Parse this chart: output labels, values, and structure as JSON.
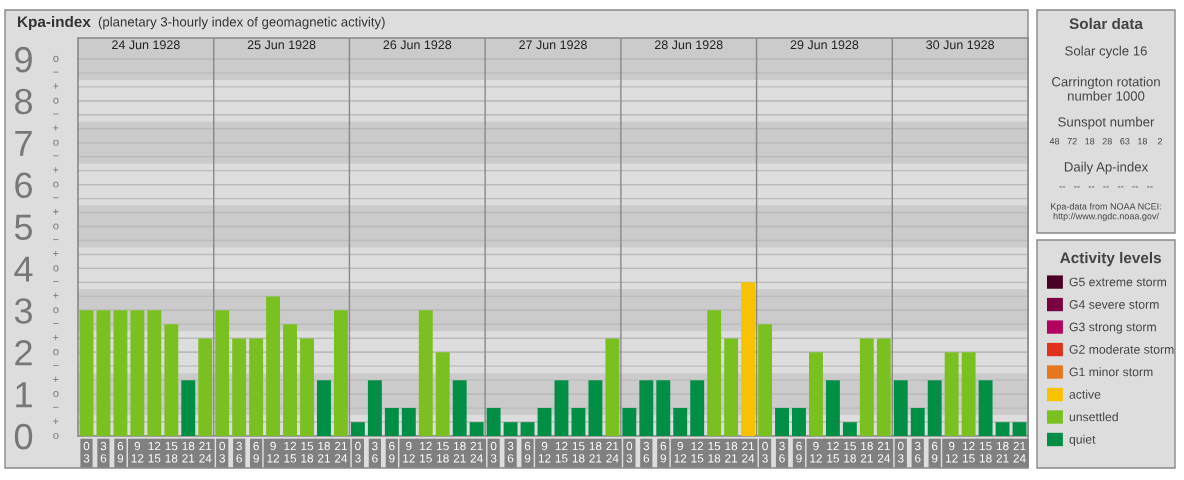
{
  "chart_data": [
    {
      "type": "bar",
      "title": "Kpa-index",
      "subtitle": "(planetary 3-hourly index of geomagnetic activity)",
      "categories": [
        "0\n3",
        "3\n6",
        "6\n9",
        "9\n12",
        "12\n15",
        "15\n18",
        "18\n21",
        "21\n24",
        "0\n3",
        "3\n6",
        "6\n9",
        "9\n12",
        "12\n15",
        "15\n18",
        "18\n21",
        "21\n24",
        "0\n3",
        "3\n6",
        "6\n9",
        "9\n12",
        "12\n15",
        "15\n18",
        "18\n21",
        "21\n24",
        "0\n3",
        "3\n6",
        "6\n9",
        "9\n12",
        "12\n15",
        "15\n18",
        "18\n21",
        "21\n24",
        "0\n3",
        "3\n6",
        "6\n9",
        "9\n12",
        "12\n15",
        "15\n18",
        "18\n21",
        "21\n24",
        "0\n3",
        "3\n6",
        "6\n9",
        "9\n12",
        "12\n15",
        "15\n18",
        "18\n21",
        "21\n24",
        "0\n3",
        "3\n6",
        "6\n9",
        "9\n12",
        "12\n15",
        "15\n18",
        "18\n21",
        "21\n24"
      ],
      "annotations": [
        "24 Jun 1928",
        "25 Jun 1928",
        "26 Jun 1928",
        "27 Jun 1928",
        "28 Jun 1928",
        "29 Jun 1928",
        "30 Jun 1928",
        "o",
        "+",
        "−",
        "o",
        "+",
        "−",
        "o",
        "+",
        "−",
        "o",
        "+",
        "−",
        "o",
        "+",
        "−",
        "o",
        "+",
        "−",
        "o",
        "+",
        "−",
        "o",
        "+",
        "−",
        "o",
        "+",
        "−",
        "o"
      ],
      "series": [
        {
          "name": "G5 extreme storm",
          "color": "#4a0025",
          "values": [
            null,
            null,
            null,
            null,
            null,
            null,
            null,
            null,
            null,
            null,
            null,
            null,
            null,
            null,
            null,
            null,
            null,
            null,
            null,
            null,
            null,
            null,
            null,
            null,
            null,
            null,
            null,
            null,
            null,
            null,
            null,
            null,
            null,
            null,
            null,
            null,
            null,
            null,
            null,
            null,
            null,
            null,
            null,
            null,
            null,
            null,
            null,
            null,
            null,
            null,
            null,
            null,
            null,
            null,
            null,
            null
          ]
        },
        {
          "name": "G4 severe storm",
          "color": "#7a0040",
          "values": [
            null,
            null,
            null,
            null,
            null,
            null,
            null,
            null,
            null,
            null,
            null,
            null,
            null,
            null,
            null,
            null,
            null,
            null,
            null,
            null,
            null,
            null,
            null,
            null,
            null,
            null,
            null,
            null,
            null,
            null,
            null,
            null,
            null,
            null,
            null,
            null,
            null,
            null,
            null,
            null,
            null,
            null,
            null,
            null,
            null,
            null,
            null,
            null,
            null,
            null,
            null,
            null,
            null,
            null,
            null,
            null
          ]
        },
        {
          "name": "G3 strong storm",
          "color": "#b3005f",
          "values": [
            null,
            null,
            null,
            null,
            null,
            null,
            null,
            null,
            null,
            null,
            null,
            null,
            null,
            null,
            null,
            null,
            null,
            null,
            null,
            null,
            null,
            null,
            null,
            null,
            null,
            null,
            null,
            null,
            null,
            null,
            null,
            null,
            null,
            null,
            null,
            null,
            null,
            null,
            null,
            null,
            null,
            null,
            null,
            null,
            null,
            null,
            null,
            null,
            null,
            null,
            null,
            null,
            null,
            null,
            null,
            null
          ]
        },
        {
          "name": "G2 moderate storm",
          "color": "#e0301e",
          "values": [
            null,
            null,
            null,
            null,
            null,
            null,
            null,
            null,
            null,
            null,
            null,
            null,
            null,
            null,
            null,
            null,
            null,
            null,
            null,
            null,
            null,
            null,
            null,
            null,
            null,
            null,
            null,
            null,
            null,
            null,
            null,
            null,
            null,
            null,
            null,
            null,
            null,
            null,
            null,
            null,
            null,
            null,
            null,
            null,
            null,
            null,
            null,
            null,
            null,
            null,
            null,
            null,
            null,
            null,
            null,
            null
          ]
        },
        {
          "name": "G1 minor storm",
          "color": "#e8761e",
          "values": [
            null,
            null,
            null,
            null,
            null,
            null,
            null,
            null,
            null,
            null,
            null,
            null,
            null,
            null,
            null,
            null,
            null,
            null,
            null,
            null,
            null,
            null,
            null,
            null,
            null,
            null,
            null,
            null,
            null,
            null,
            null,
            null,
            null,
            null,
            null,
            null,
            null,
            null,
            null,
            null,
            null,
            null,
            null,
            null,
            null,
            null,
            null,
            null,
            null,
            null,
            null,
            null,
            null,
            null,
            null,
            null
          ]
        },
        {
          "name": "active",
          "color": "#f7c300",
          "values": [
            null,
            null,
            null,
            null,
            null,
            null,
            null,
            null,
            null,
            null,
            null,
            null,
            null,
            null,
            null,
            null,
            null,
            null,
            null,
            null,
            null,
            null,
            null,
            null,
            null,
            null,
            null,
            null,
            null,
            null,
            null,
            null,
            null,
            null,
            null,
            null,
            null,
            null,
            null,
            3.67,
            null,
            null,
            null,
            null,
            null,
            null,
            null,
            null,
            null,
            null,
            null,
            null,
            null,
            null,
            null,
            null
          ]
        },
        {
          "name": "unsettled",
          "color": "#7bc021",
          "values": [
            3,
            3,
            3,
            3,
            3,
            2.67,
            null,
            2.33,
            3,
            2.33,
            2.33,
            3.33,
            2.67,
            2.33,
            null,
            3,
            null,
            null,
            null,
            null,
            3,
            2,
            null,
            null,
            null,
            null,
            null,
            null,
            null,
            null,
            null,
            2.33,
            null,
            null,
            null,
            null,
            null,
            3,
            2.33,
            null,
            2.67,
            null,
            null,
            2,
            null,
            null,
            2.33,
            2.33,
            null,
            null,
            null,
            2,
            2,
            null,
            null,
            null
          ]
        },
        {
          "name": "quiet",
          "color": "#008f45",
          "values": [
            null,
            null,
            null,
            null,
            null,
            null,
            1.33,
            null,
            null,
            null,
            null,
            null,
            null,
            null,
            1.33,
            null,
            0.33,
            1.33,
            0.67,
            0.67,
            null,
            null,
            1.33,
            0.33,
            0.67,
            0.33,
            0.33,
            0.67,
            1.33,
            0.67,
            1.33,
            null,
            0.67,
            1.33,
            1.33,
            0.67,
            1.33,
            null,
            null,
            null,
            null,
            0.67,
            0.67,
            null,
            1.33,
            0.33,
            null,
            null,
            1.33,
            0.67,
            1.33,
            null,
            null,
            1.33,
            0.33,
            0.33
          ]
        }
      ],
      "ylim": [
        0,
        9.5
      ],
      "yticks": [
        0,
        1,
        2,
        3,
        4,
        5,
        6,
        7,
        8,
        9
      ],
      "bands": [
        {
          "axis": "y",
          "from": 0.5,
          "to": 1.5,
          "color": "#cbcbcb"
        },
        {
          "axis": "y",
          "from": 2.5,
          "to": 3.5,
          "color": "#cbcbcb"
        },
        {
          "axis": "y",
          "from": 4.5,
          "to": 5.5,
          "color": "#cbcbcb"
        },
        {
          "axis": "y",
          "from": 6.5,
          "to": 7.5,
          "color": "#cbcbcb"
        },
        {
          "axis": "y",
          "from": 8.5,
          "to": 9.5,
          "color": "#cbcbcb"
        }
      ],
      "grid": "y",
      "legend": "right",
      "legend_title": "Activity levels"
    },
    {
      "type": "other",
      "title": "Solar data",
      "annotations": [
        "Solar cycle 16",
        "Carrington rotation\nnumber 1000",
        "Sunspot number",
        "48   72   18   28   63   18    2",
        "Daily Ap-index",
        "--   --   --   --   --   --   --",
        "Kpa-data from NOAA NCEI:\nhttp://www.ngdc.noaa.gov/"
      ]
    }
  ]
}
